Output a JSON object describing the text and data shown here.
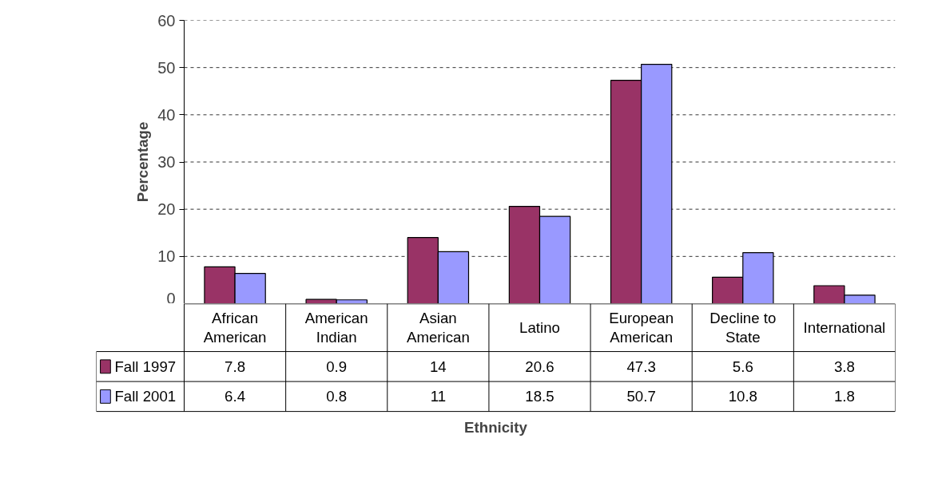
{
  "chart_data": {
    "type": "bar",
    "xlabel": "Ethnicity",
    "ylabel": "Percentage",
    "categories": [
      "African American",
      "American Indian",
      "Asian American",
      "Latino",
      "European American",
      "Decline to State",
      "International"
    ],
    "series": [
      {
        "name": "Fall 1997",
        "color": "#993366",
        "values": [
          7.8,
          0.9,
          14,
          20.6,
          47.3,
          5.6,
          3.8
        ]
      },
      {
        "name": "Fall 2001",
        "color": "#9999ff",
        "values": [
          6.4,
          0.8,
          11,
          18.5,
          50.7,
          10.8,
          1.8
        ]
      }
    ],
    "ylim": [
      0,
      60
    ],
    "yticks": [
      0,
      10,
      20,
      30,
      40,
      50,
      60
    ],
    "grid": "y",
    "data_labels": true,
    "legend": "bottom"
  }
}
